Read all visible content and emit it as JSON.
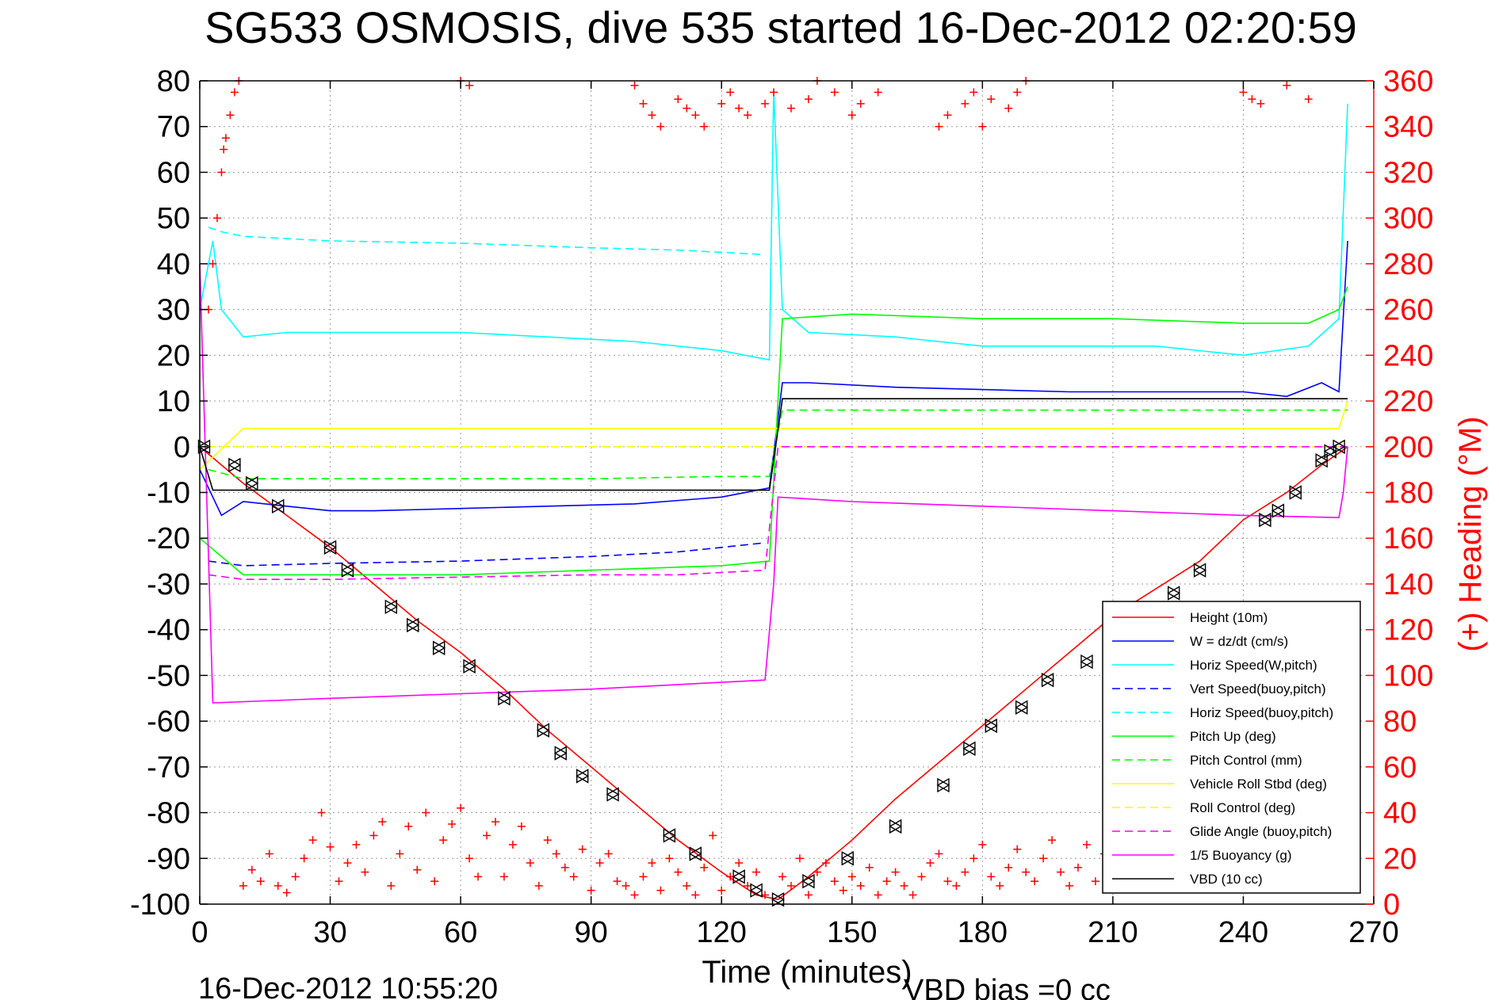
{
  "chart_data": {
    "type": "line",
    "title": "SG533 OSMOSIS, dive 535 started 16-Dec-2012 02:20:59",
    "xlabel": "Time (minutes)",
    "ylabel_right": "(+) Heading (°M)",
    "footer_left": "16-Dec-2012 10:55:20",
    "footer_right": "VBD bias =0 cc",
    "xlim": [
      0,
      270
    ],
    "ylim": [
      -100,
      80
    ],
    "ylim_right": [
      0,
      360
    ],
    "x_ticks": [
      0,
      30,
      60,
      90,
      120,
      150,
      180,
      210,
      240,
      270
    ],
    "x_tick_labels": [
      "0",
      "30",
      "60",
      "90",
      "120",
      "150",
      "180",
      "210",
      "240",
      "270"
    ],
    "y_ticks": [
      80,
      70,
      60,
      50,
      40,
      30,
      20,
      10,
      0,
      -10,
      -20,
      -30,
      -40,
      -50,
      -60,
      -70,
      -80,
      -90,
      -100
    ],
    "y_tick_labels": [
      "80",
      "70",
      "60",
      "50",
      "40",
      "30",
      "20",
      "10",
      "0",
      "-10",
      "-20",
      "-30",
      "-40",
      "-50",
      "-60",
      "-70",
      "-80",
      "-90",
      "-100"
    ],
    "y_right_ticks": [
      360,
      340,
      320,
      300,
      280,
      260,
      240,
      220,
      200,
      180,
      160,
      140,
      120,
      100,
      80,
      60,
      40,
      20,
      0
    ],
    "y_right_tick_labels": [
      "360",
      "340",
      "320",
      "300",
      "280",
      "260",
      "240",
      "220",
      "200",
      "180",
      "160",
      "140",
      "120",
      "100",
      "80",
      "60",
      "40",
      "20",
      "0"
    ],
    "grid": true,
    "legend_position": "bottom-right",
    "series": [
      {
        "name": "Height (10m)",
        "color": "#ff0000",
        "dash": "solid",
        "axis": "left",
        "x": [
          0,
          10,
          20,
          30,
          40,
          50,
          60,
          70,
          80,
          90,
          100,
          110,
          120,
          128,
          133,
          140,
          150,
          160,
          170,
          180,
          190,
          200,
          210,
          220,
          230,
          240,
          250,
          258,
          264
        ],
        "y": [
          0,
          -8,
          -15,
          -22,
          -30,
          -38,
          -45,
          -53,
          -62,
          -70,
          -78,
          -86,
          -93,
          -98,
          -99,
          -94,
          -86,
          -77,
          -69,
          -61,
          -53,
          -45,
          -37,
          -31,
          -25,
          -16,
          -10,
          -4,
          0
        ]
      },
      {
        "name": "W = dz/dt (cm/s)",
        "color": "#0000ff",
        "dash": "solid",
        "axis": "left",
        "x": [
          0,
          5,
          10,
          20,
          30,
          40,
          60,
          80,
          100,
          120,
          131,
          134,
          140,
          160,
          180,
          200,
          220,
          240,
          250,
          258,
          262,
          264
        ],
        "y": [
          -5,
          -15,
          -12,
          -13,
          -14,
          -14,
          -13.5,
          -13,
          -12.5,
          -11,
          -9,
          14,
          14,
          13,
          12.5,
          12,
          12,
          12,
          11,
          14,
          12,
          45
        ]
      },
      {
        "name": "Horiz Speed(W,pitch)",
        "color": "#00ffff",
        "dash": "solid",
        "axis": "left",
        "x": [
          0,
          3,
          5,
          10,
          20,
          40,
          60,
          80,
          100,
          120,
          131,
          132,
          134,
          140,
          160,
          180,
          200,
          220,
          240,
          255,
          262,
          264
        ],
        "y": [
          30,
          45,
          30,
          24,
          25,
          25,
          25,
          24,
          23,
          21,
          19,
          78,
          30,
          25,
          24,
          22,
          22,
          22,
          20,
          22,
          28,
          75
        ]
      },
      {
        "name": "Vert Speed(buoy,pitch)",
        "color": "#0000ff",
        "dash": "dashed",
        "axis": "left",
        "x": [
          2,
          10,
          30,
          60,
          90,
          110,
          120,
          130
        ],
        "y": [
          -25,
          -26,
          -25.5,
          -25,
          -24,
          -23,
          -22,
          -21
        ]
      },
      {
        "name": "Horiz Speed(buoy,pitch)",
        "color": "#00ffff",
        "dash": "dashed",
        "axis": "left",
        "x": [
          2,
          5,
          10,
          30,
          60,
          90,
          110,
          130
        ],
        "y": [
          48,
          47,
          46,
          45,
          44.5,
          43.5,
          43,
          42
        ]
      },
      {
        "name": "Pitch Up (deg)",
        "color": "#00ff00",
        "dash": "solid",
        "axis": "left",
        "x": [
          0,
          10,
          30,
          60,
          90,
          120,
          131,
          134,
          150,
          180,
          210,
          240,
          255,
          262,
          264
        ],
        "y": [
          -20,
          -28,
          -28,
          -28,
          -27,
          -26,
          -25,
          28,
          29,
          28,
          28,
          27,
          27,
          30,
          35
        ]
      },
      {
        "name": "Pitch Control (mm)",
        "color": "#00ff00",
        "dash": "dashed",
        "axis": "left",
        "x": [
          2,
          10,
          30,
          60,
          90,
          120,
          131,
          134,
          180,
          240,
          264
        ],
        "y": [
          -5,
          -7,
          -7,
          -7,
          -7,
          -6.5,
          -6.5,
          8,
          8,
          8,
          8
        ]
      },
      {
        "name": "Vehicle Roll Stbd (deg)",
        "color": "#ffff00",
        "dash": "solid",
        "axis": "left",
        "x": [
          0,
          10,
          30,
          60,
          90,
          120,
          131,
          134,
          160,
          190,
          220,
          250,
          262,
          264
        ],
        "y": [
          -5,
          4,
          4,
          4,
          4,
          4,
          4,
          4,
          4,
          4,
          4,
          4,
          4,
          10
        ]
      },
      {
        "name": "Roll Control (deg)",
        "color": "#ffff00",
        "dash": "dashed",
        "axis": "left",
        "x": [
          2,
          30,
          60,
          90,
          120,
          131,
          134,
          180,
          240,
          264
        ],
        "y": [
          0,
          0,
          0,
          0,
          0,
          0,
          0,
          0,
          0,
          0
        ]
      },
      {
        "name": "Glide Angle (buoy,pitch)",
        "color": "#ff00ff",
        "dash": "dashed",
        "axis": "left",
        "x": [
          2,
          10,
          30,
          60,
          90,
          110,
          130,
          133,
          180,
          240,
          264
        ],
        "y": [
          -28,
          -29,
          -29,
          -28.5,
          -28,
          -28,
          -27,
          0,
          0,
          0,
          0
        ]
      },
      {
        "name": "1/5 Buoyancy (g)",
        "color": "#ff00ff",
        "dash": "solid",
        "axis": "left",
        "x": [
          0,
          3,
          30,
          60,
          90,
          110,
          130,
          132,
          133,
          150,
          180,
          210,
          240,
          262,
          263,
          264
        ],
        "y": [
          40,
          -56,
          -55,
          -54,
          -53,
          -52,
          -51,
          -30,
          -11,
          -12,
          -13,
          -14,
          -15,
          -15.5,
          -10,
          0
        ]
      },
      {
        "name": "VBD (10 cc)",
        "color": "#000000",
        "dash": "solid",
        "axis": "left",
        "x": [
          0,
          3,
          30,
          60,
          90,
          120,
          131,
          134,
          180,
          240,
          262,
          264
        ],
        "y": [
          0,
          -9.5,
          -9.5,
          -9.5,
          -9.5,
          -9.5,
          -9.5,
          10.5,
          10.5,
          10.5,
          10.5,
          10.5
        ]
      }
    ],
    "heading": {
      "name": "(+) Heading",
      "color": "#ff0000",
      "marker": "+",
      "axis": "right",
      "points_low_x": [
        10,
        12,
        14,
        16,
        18,
        20,
        22,
        24,
        26,
        28,
        30,
        32,
        34,
        36,
        38,
        40,
        42,
        44,
        46,
        48,
        50,
        52,
        54,
        56,
        58,
        60,
        62,
        64,
        66,
        68,
        70,
        72,
        74,
        76,
        78,
        80,
        82,
        84,
        86,
        88,
        90,
        92,
        94,
        96,
        98,
        100,
        102,
        104,
        106,
        108,
        110,
        112,
        114,
        116,
        118,
        120,
        122,
        124,
        126,
        128,
        130,
        134,
        136,
        138,
        140,
        142,
        144,
        146,
        148,
        150,
        152,
        154,
        156,
        158,
        160,
        162,
        164,
        166,
        168,
        170,
        172,
        174,
        176,
        178,
        180,
        182,
        184,
        186,
        188,
        190,
        192,
        194,
        196,
        198,
        200,
        202,
        204,
        206,
        208,
        210,
        212
      ],
      "points_low_y": [
        8,
        15,
        10,
        22,
        8,
        5,
        12,
        20,
        28,
        40,
        25,
        10,
        18,
        26,
        14,
        30,
        36,
        8,
        22,
        34,
        15,
        40,
        10,
        28,
        35,
        42,
        20,
        12,
        30,
        36,
        12,
        26,
        34,
        18,
        8,
        28,
        22,
        16,
        12,
        24,
        6,
        18,
        22,
        10,
        8,
        4,
        12,
        18,
        6,
        20,
        14,
        8,
        4,
        16,
        30,
        6,
        12,
        18,
        8,
        14,
        4,
        12,
        8,
        20,
        4,
        14,
        18,
        10,
        6,
        12,
        8,
        16,
        4,
        10,
        14,
        8,
        4,
        12,
        18,
        22,
        10,
        8,
        14,
        20,
        26,
        12,
        8,
        16,
        24,
        14,
        10,
        20,
        28,
        14,
        8,
        16,
        26,
        10,
        22,
        12,
        30
      ],
      "points_high_x": [
        2,
        3,
        4,
        5,
        5.5,
        6,
        7,
        8,
        9,
        60,
        62,
        100,
        102,
        104,
        106,
        110,
        112,
        114,
        116,
        120,
        122,
        124,
        126,
        130,
        132,
        136,
        140,
        142,
        146,
        150,
        152,
        156,
        170,
        172,
        176,
        178,
        180,
        182,
        186,
        188,
        190,
        240,
        242,
        244,
        250,
        255
      ],
      "points_high_y": [
        260,
        280,
        300,
        320,
        330,
        335,
        345,
        355,
        360,
        360,
        358,
        358,
        350,
        345,
        340,
        352,
        348,
        345,
        340,
        350,
        355,
        348,
        345,
        350,
        355,
        348,
        352,
        360,
        355,
        345,
        350,
        355,
        340,
        345,
        350,
        355,
        340,
        352,
        348,
        355,
        360,
        355,
        352,
        350,
        358,
        352
      ]
    },
    "depth_markers": {
      "name": "Height (10m) markers",
      "color": "#000000",
      "x": [
        1,
        8,
        12,
        18,
        30,
        34,
        44,
        49,
        55,
        62,
        70,
        79,
        83,
        88,
        95,
        108,
        114,
        124,
        128,
        133,
        140,
        149,
        160,
        171,
        177,
        182,
        189,
        195,
        204,
        212,
        218,
        224,
        230,
        245,
        248,
        252,
        258,
        260,
        262
      ],
      "y": [
        0,
        -4,
        -8,
        -13,
        -22,
        -27,
        -35,
        -39,
        -44,
        -48,
        -55,
        -62,
        -67,
        -72,
        -76,
        -85,
        -89,
        -94,
        -97,
        -99,
        -95,
        -90,
        -83,
        -74,
        -66,
        -61,
        -57,
        -51,
        -47,
        -42,
        -37,
        -32,
        -27,
        -16,
        -14,
        -10,
        -3,
        -1,
        0
      ]
    },
    "legend": [
      {
        "label": "Height (10m)",
        "color": "#ff0000",
        "dash": "solid"
      },
      {
        "label": "W = dz/dt (cm/s)",
        "color": "#0000ff",
        "dash": "solid"
      },
      {
        "label": "Horiz Speed(W,pitch)",
        "color": "#00ffff",
        "dash": "solid"
      },
      {
        "label": "Vert Speed(buoy,pitch)",
        "color": "#0000ff",
        "dash": "dashed"
      },
      {
        "label": "Horiz Speed(buoy,pitch)",
        "color": "#00ffff",
        "dash": "dashed"
      },
      {
        "label": "Pitch Up (deg)",
        "color": "#00ff00",
        "dash": "solid"
      },
      {
        "label": "Pitch Control (mm)",
        "color": "#00ff00",
        "dash": "dashed"
      },
      {
        "label": "Vehicle Roll Stbd (deg)",
        "color": "#ffff00",
        "dash": "solid"
      },
      {
        "label": "Roll Control (deg)",
        "color": "#ffff00",
        "dash": "dashed"
      },
      {
        "label": "Glide Angle (buoy,pitch)",
        "color": "#ff00ff",
        "dash": "dashed"
      },
      {
        "label": "1/5 Buoyancy (g)",
        "color": "#ff00ff",
        "dash": "solid"
      },
      {
        "label": "VBD (10 cc)",
        "color": "#000000",
        "dash": "solid"
      }
    ]
  }
}
